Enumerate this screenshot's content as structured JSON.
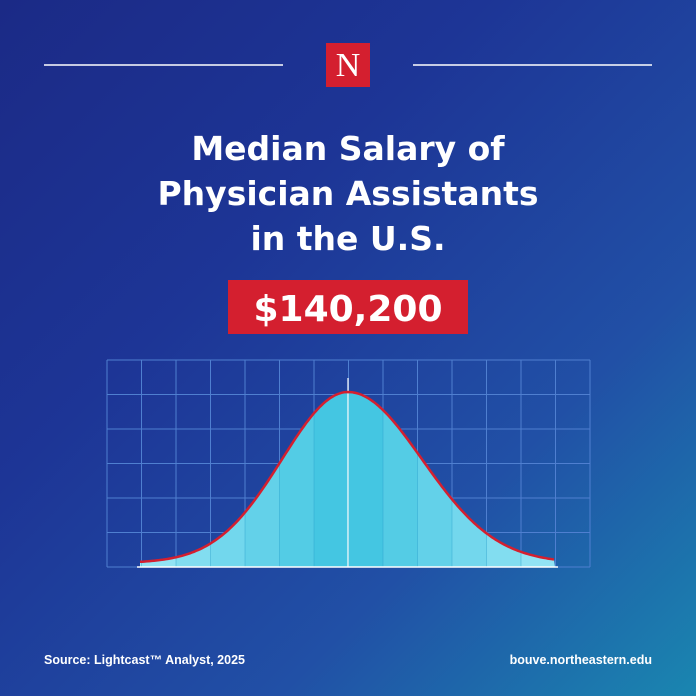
{
  "logo": "N",
  "title": {
    "lines": [
      "Median Salary of",
      "Physician Assistants",
      "in the U.S."
    ]
  },
  "salary": "$140,200",
  "footer": {
    "source": "Source: Lightcast™ Analyst, 2025",
    "url": "bouve.northeastern.edu"
  }
}
